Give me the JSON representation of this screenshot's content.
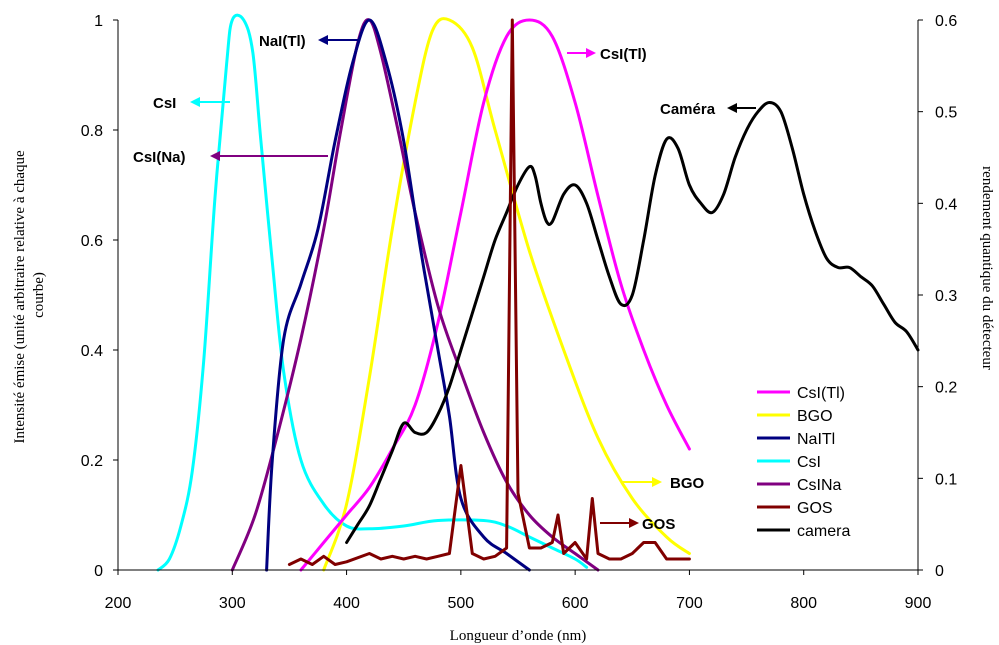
{
  "chart_data": {
    "type": "line",
    "xlabel": "Longueur d’onde (nm)",
    "ylabel": "Intensité émise (unité arbitraire relative à chaque courbe)",
    "ylabel_lines": [
      "Intensité émise (unité arbitraire relative à chaque",
      "courbe)"
    ],
    "y2label": "rendement quantique du détecteur",
    "xlim": [
      200,
      900
    ],
    "ylim": [
      0,
      1
    ],
    "y2lim": [
      0,
      0.6
    ],
    "x_ticks": [
      "200",
      "300",
      "400",
      "500",
      "600",
      "700",
      "800",
      "900"
    ],
    "y_ticks": [
      "0",
      "0.2",
      "0.4",
      "0.6",
      "0.8",
      "1"
    ],
    "y2_ticks": [
      "0",
      "0.1",
      "0.2",
      "0.3",
      "0.4",
      "0.5",
      "0.6"
    ],
    "grid": false,
    "legend_position": "bottom-right",
    "series": [
      {
        "name": "CsI(Tl)",
        "color": "#ff00ff",
        "axis": "left",
        "x": [
          360,
          380,
          400,
          420,
          440,
          460,
          480,
          500,
          520,
          540,
          560,
          580,
          600,
          620,
          640,
          660,
          680,
          700
        ],
        "y": [
          0,
          0.05,
          0.1,
          0.15,
          0.22,
          0.3,
          0.45,
          0.65,
          0.85,
          0.97,
          1.0,
          0.97,
          0.85,
          0.68,
          0.52,
          0.4,
          0.3,
          0.22
        ]
      },
      {
        "name": "BGO",
        "color": "#ffff00",
        "axis": "left",
        "x": [
          380,
          400,
          420,
          440,
          460,
          475,
          490,
          510,
          530,
          560,
          590,
          620,
          650,
          680,
          700
        ],
        "y": [
          0,
          0.12,
          0.35,
          0.62,
          0.85,
          0.98,
          1.0,
          0.95,
          0.8,
          0.58,
          0.4,
          0.24,
          0.13,
          0.06,
          0.03
        ]
      },
      {
        "name": "NaITl",
        "color": "#000080",
        "axis": "left",
        "x": [
          330,
          335,
          345,
          360,
          375,
          390,
          405,
          420,
          435,
          450,
          465,
          480,
          490,
          500,
          520,
          540,
          560
        ],
        "y": [
          0,
          0.2,
          0.42,
          0.52,
          0.62,
          0.78,
          0.92,
          1.0,
          0.92,
          0.78,
          0.58,
          0.4,
          0.28,
          0.13,
          0.06,
          0.03,
          0.0
        ]
      },
      {
        "name": "CsI",
        "color": "#00ffff",
        "axis": "left",
        "x": [
          235,
          245,
          255,
          265,
          275,
          285,
          295,
          300,
          310,
          318,
          325,
          335,
          345,
          360,
          380,
          400,
          420,
          450,
          480,
          520,
          540,
          560,
          580,
          600,
          610
        ],
        "y": [
          0,
          0.02,
          0.08,
          0.18,
          0.38,
          0.68,
          0.92,
          1.0,
          1.0,
          0.94,
          0.78,
          0.56,
          0.36,
          0.2,
          0.12,
          0.08,
          0.075,
          0.08,
          0.09,
          0.09,
          0.08,
          0.06,
          0.04,
          0.02,
          0.005
        ]
      },
      {
        "name": "CsINa",
        "color": "#800080",
        "axis": "left",
        "x": [
          300,
          320,
          340,
          360,
          380,
          395,
          410,
          420,
          430,
          445,
          460,
          480,
          500,
          520,
          540,
          560,
          580,
          600,
          620
        ],
        "y": [
          0,
          0.1,
          0.25,
          0.42,
          0.62,
          0.8,
          0.96,
          1.0,
          0.94,
          0.8,
          0.65,
          0.48,
          0.36,
          0.25,
          0.16,
          0.1,
          0.06,
          0.03,
          0.0
        ]
      },
      {
        "name": "GOS",
        "color": "#800000",
        "axis": "left",
        "x": [
          350,
          360,
          370,
          380,
          390,
          400,
          420,
          430,
          440,
          450,
          460,
          470,
          480,
          490,
          500,
          510,
          520,
          530,
          540,
          545,
          550,
          560,
          570,
          580,
          585,
          590,
          600,
          610,
          615,
          620,
          630,
          640,
          650,
          660,
          670,
          680,
          690,
          700
        ],
        "y": [
          0.01,
          0.02,
          0.01,
          0.025,
          0.01,
          0.015,
          0.03,
          0.02,
          0.025,
          0.02,
          0.025,
          0.02,
          0.025,
          0.03,
          0.19,
          0.03,
          0.02,
          0.025,
          0.04,
          1.0,
          0.14,
          0.04,
          0.04,
          0.05,
          0.1,
          0.03,
          0.05,
          0.02,
          0.13,
          0.03,
          0.02,
          0.02,
          0.03,
          0.05,
          0.05,
          0.02,
          0.02,
          0.02
        ]
      },
      {
        "name": "camera",
        "color": "#000000",
        "axis": "right",
        "x": [
          400,
          410,
          420,
          430,
          440,
          450,
          460,
          470,
          480,
          490,
          500,
          510,
          520,
          530,
          540,
          550,
          560,
          565,
          570,
          575,
          580,
          590,
          600,
          610,
          620,
          630,
          640,
          650,
          660,
          670,
          680,
          690,
          700,
          710,
          720,
          730,
          740,
          750,
          760,
          770,
          780,
          790,
          800,
          810,
          820,
          830,
          840,
          850,
          860,
          870,
          880,
          890,
          900
        ],
        "y": [
          0.03,
          0.05,
          0.07,
          0.1,
          0.13,
          0.16,
          0.15,
          0.15,
          0.17,
          0.2,
          0.24,
          0.28,
          0.32,
          0.36,
          0.39,
          0.42,
          0.44,
          0.43,
          0.4,
          0.38,
          0.38,
          0.41,
          0.42,
          0.4,
          0.36,
          0.32,
          0.29,
          0.3,
          0.36,
          0.43,
          0.47,
          0.46,
          0.42,
          0.4,
          0.39,
          0.41,
          0.45,
          0.48,
          0.5,
          0.51,
          0.5,
          0.46,
          0.41,
          0.37,
          0.34,
          0.33,
          0.33,
          0.32,
          0.31,
          0.29,
          0.27,
          0.26,
          0.24
        ]
      }
    ],
    "annotations": [
      {
        "text": "NaI(Tl)",
        "arrow_color": "#000080"
      },
      {
        "text": "CsI(Tl)",
        "arrow_color": "#ff00ff"
      },
      {
        "text": "CsI",
        "arrow_color": "#00ffff"
      },
      {
        "text": "CsI(Na)",
        "arrow_color": "#800080"
      },
      {
        "text": "Caméra",
        "arrow_color": "#000000"
      },
      {
        "text": "BGO",
        "arrow_color": "#ffff00"
      },
      {
        "text": "GOS",
        "arrow_color": "#800000"
      }
    ]
  }
}
